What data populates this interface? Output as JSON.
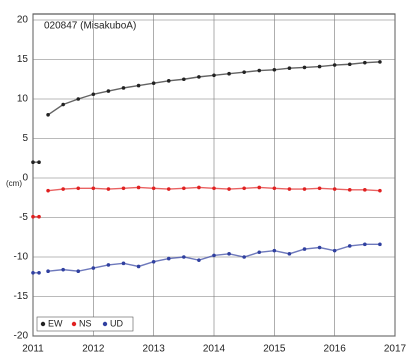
{
  "chart_data": {
    "type": "scatter",
    "subtitle": "020847 (MisakuboA)",
    "y_label": "(cm)",
    "x": [
      2011.0,
      2011.1,
      2011.2,
      2011.25,
      2011.5,
      2011.75,
      2012.0,
      2012.25,
      2012.5,
      2012.75,
      2013.0,
      2013.25,
      2013.5,
      2013.75,
      2014.0,
      2014.25,
      2014.5,
      2014.75,
      2015.0,
      2015.25,
      2015.5,
      2015.75,
      2016.0,
      2016.25,
      2016.5,
      2016.75
    ],
    "series": [
      {
        "name": "EW",
        "color": "#222222",
        "values": [
          2.0,
          2.0,
          null,
          8.0,
          9.3,
          10.0,
          10.6,
          11.0,
          11.4,
          11.7,
          12.0,
          12.3,
          12.5,
          12.8,
          13.0,
          13.2,
          13.4,
          13.6,
          13.7,
          13.9,
          14.0,
          14.1,
          14.3,
          14.4,
          14.6,
          14.7
        ]
      },
      {
        "name": "NS",
        "color": "#e02020",
        "values": [
          -4.9,
          -4.9,
          null,
          -1.6,
          -1.4,
          -1.3,
          -1.3,
          -1.4,
          -1.3,
          -1.2,
          -1.3,
          -1.4,
          -1.3,
          -1.2,
          -1.3,
          -1.4,
          -1.3,
          -1.2,
          -1.3,
          -1.4,
          -1.4,
          -1.3,
          -1.4,
          -1.5,
          -1.5,
          -1.6
        ]
      },
      {
        "name": "UD",
        "color": "#3040a0",
        "values": [
          -12.0,
          -12.0,
          null,
          -11.8,
          -11.6,
          -11.8,
          -11.4,
          -11.0,
          -10.8,
          -11.2,
          -10.6,
          -10.2,
          -10.0,
          -10.4,
          -9.8,
          -9.6,
          -10.0,
          -9.4,
          -9.2,
          -9.6,
          -9.0,
          -8.8,
          -9.2,
          -8.6,
          -8.4,
          -8.4
        ]
      }
    ],
    "xlim": [
      2011,
      2017
    ],
    "xticks": [
      2011,
      2012,
      2013,
      2014,
      2015,
      2016,
      2017
    ],
    "ylim": [
      -20,
      20
    ],
    "yticks": [
      20,
      15,
      10,
      5,
      0,
      -5,
      -10,
      -15,
      -20
    ],
    "grid": true,
    "legend": "lower left"
  }
}
